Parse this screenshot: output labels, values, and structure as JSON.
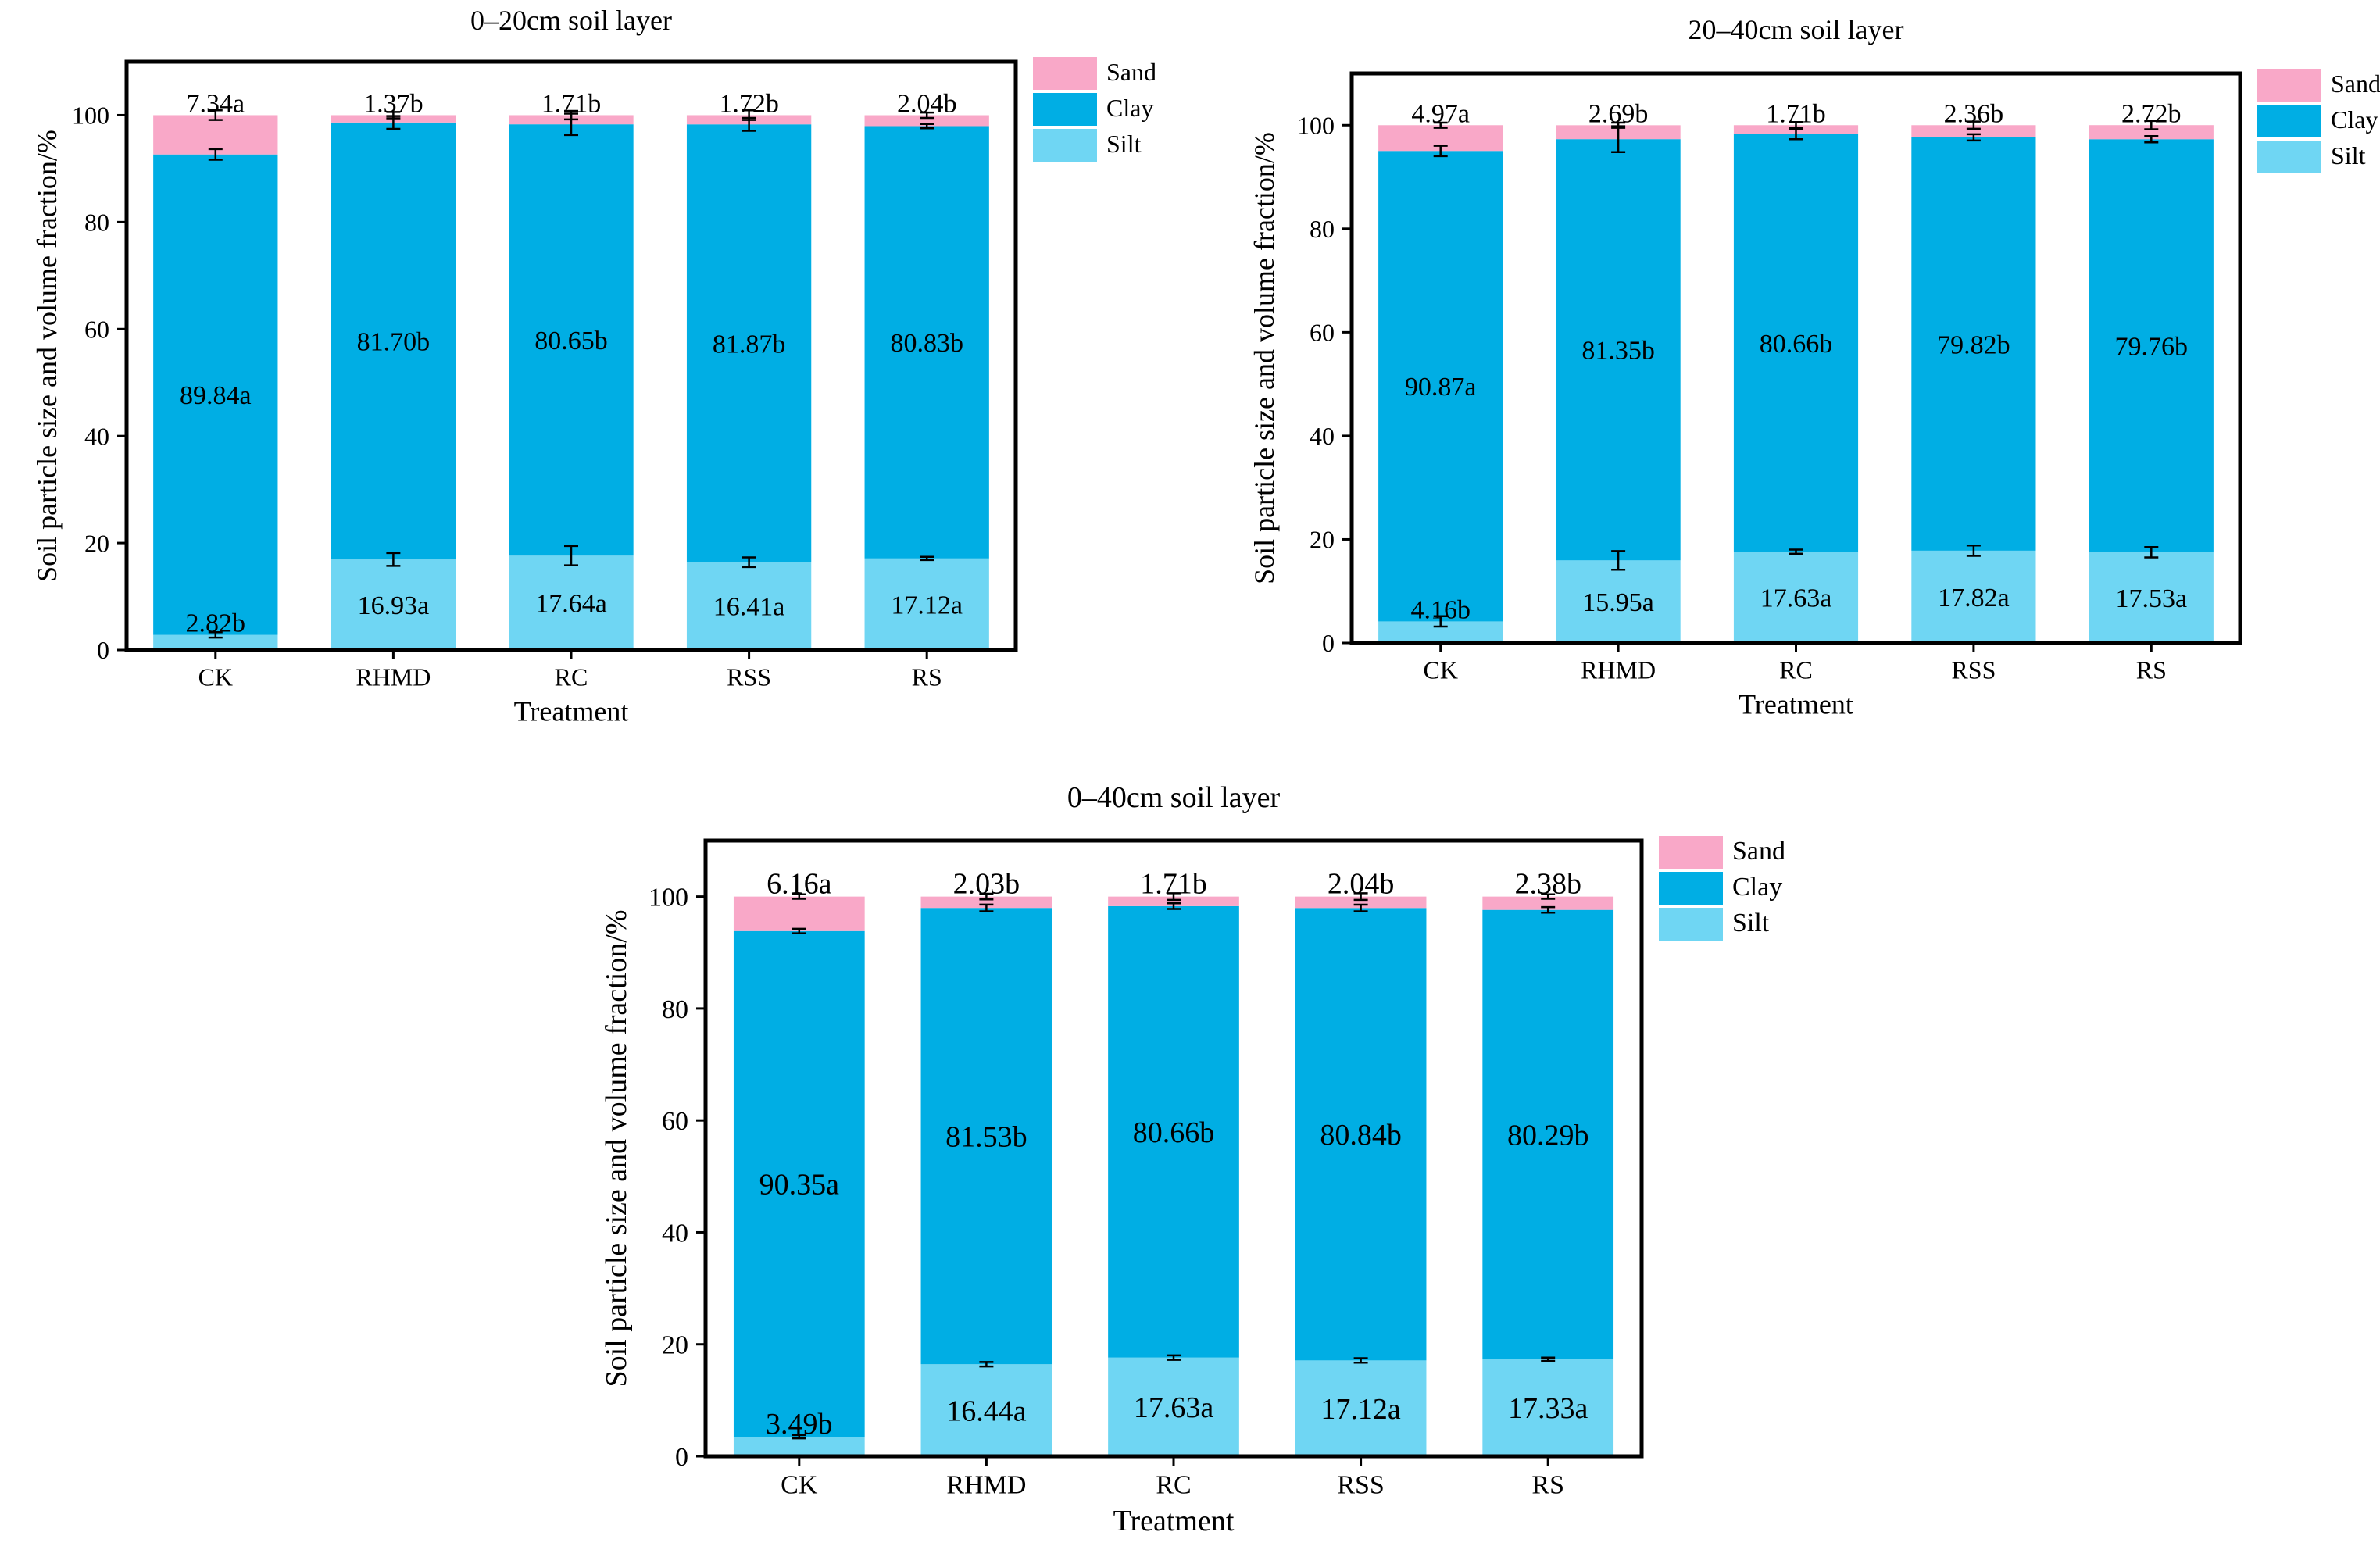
{
  "figure": {
    "categories": [
      "CK",
      "RHMD",
      "RC",
      "RSS",
      "RS"
    ],
    "xlabel": "Treatment",
    "ylabel": "Soil particle size and volume fraction/%",
    "ylim": [
      0,
      110
    ],
    "yticks": [
      0,
      20,
      40,
      60,
      80,
      100
    ],
    "legend": [
      {
        "name": "Sand",
        "color": "#f9a8c8"
      },
      {
        "name": "Clay",
        "color": "#00aee4"
      },
      {
        "name": "Silt",
        "color": "#6fd6f3"
      }
    ]
  },
  "chart_data": [
    {
      "type": "bar",
      "stacked": true,
      "title": "0–20cm soil layer",
      "xlabel": "Treatment",
      "ylabel": "Soil particle size and volume fraction/%",
      "ylim": [
        0,
        110
      ],
      "categories": [
        "CK",
        "RHMD",
        "RC",
        "RSS",
        "RS"
      ],
      "series": [
        {
          "name": "Silt",
          "values": [
            2.82,
            16.93,
            17.64,
            16.41,
            17.12
          ],
          "labels": [
            "2.82b",
            "16.93a",
            "17.64a",
            "16.41a",
            "17.12a"
          ],
          "errors": [
            0.5,
            1.2,
            1.8,
            0.9,
            0.3
          ]
        },
        {
          "name": "Clay",
          "values": [
            89.84,
            81.7,
            80.65,
            81.87,
            80.83
          ],
          "labels": [
            "89.84a",
            "81.70b",
            "80.65b",
            "81.87b",
            "80.83b"
          ],
          "errors": [
            1.0,
            1.2,
            2.0,
            1.2,
            0.4
          ]
        },
        {
          "name": "Sand",
          "values": [
            7.34,
            1.37,
            1.71,
            1.72,
            2.04
          ],
          "labels": [
            "7.34a",
            "1.37b",
            "1.71b",
            "1.72b",
            "2.04b"
          ],
          "errors": [
            0.9,
            0.6,
            0.8,
            0.9,
            0.5
          ]
        }
      ]
    },
    {
      "type": "bar",
      "stacked": true,
      "title": "20–40cm soil layer",
      "xlabel": "Treatment",
      "ylabel": "Soil particle size and volume fraction/%",
      "ylim": [
        0,
        110
      ],
      "categories": [
        "CK",
        "RHMD",
        "RC",
        "RSS",
        "RS"
      ],
      "series": [
        {
          "name": "Silt",
          "values": [
            4.16,
            15.95,
            17.63,
            17.82,
            17.53
          ],
          "labels": [
            "4.16b",
            "15.95a",
            "17.63a",
            "17.82a",
            "17.53a"
          ],
          "errors": [
            1.0,
            1.8,
            0.4,
            1.0,
            1.0
          ]
        },
        {
          "name": "Clay",
          "values": [
            90.87,
            81.35,
            80.66,
            79.82,
            79.76
          ],
          "labels": [
            "90.87a",
            "81.35b",
            "80.66b",
            "79.82b",
            "79.76b"
          ],
          "errors": [
            1.0,
            2.5,
            1.0,
            0.6,
            0.6
          ]
        },
        {
          "name": "Sand",
          "values": [
            4.97,
            2.69,
            1.71,
            2.36,
            2.72
          ],
          "labels": [
            "4.97a",
            "2.69b",
            "1.71b",
            "2.36b",
            "2.72b"
          ],
          "errors": [
            0.5,
            0.5,
            0.6,
            0.7,
            0.8
          ]
        }
      ]
    },
    {
      "type": "bar",
      "stacked": true,
      "title": "0–40cm soil layer",
      "xlabel": "Treatment",
      "ylabel": "Soil particle size and volume fraction/%",
      "ylim": [
        0,
        110
      ],
      "categories": [
        "CK",
        "RHMD",
        "RC",
        "RSS",
        "RS"
      ],
      "series": [
        {
          "name": "Silt",
          "values": [
            3.49,
            16.44,
            17.63,
            17.12,
            17.33
          ],
          "labels": [
            "3.49b",
            "16.44a",
            "17.63a",
            "17.12a",
            "17.33a"
          ],
          "errors": [
            0.3,
            0.4,
            0.4,
            0.4,
            0.3
          ]
        },
        {
          "name": "Clay",
          "values": [
            90.35,
            81.53,
            80.66,
            80.84,
            80.29
          ],
          "labels": [
            "90.35a",
            "81.53b",
            "80.66b",
            "80.84b",
            "80.29b"
          ],
          "errors": [
            0.4,
            0.6,
            0.5,
            0.6,
            0.5
          ]
        },
        {
          "name": "Sand",
          "values": [
            6.16,
            2.03,
            1.71,
            2.04,
            2.38
          ],
          "labels": [
            "6.16a",
            "2.03b",
            "1.71b",
            "2.04b",
            "2.38b"
          ],
          "errors": [
            0.4,
            0.5,
            0.6,
            0.6,
            0.4
          ]
        }
      ]
    }
  ]
}
